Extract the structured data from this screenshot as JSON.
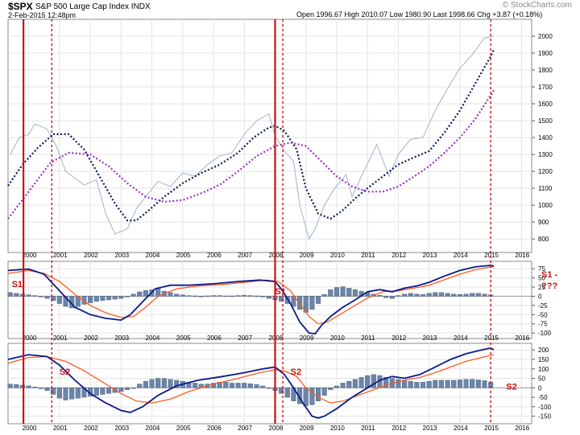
{
  "header": {
    "symbol": "$SPX",
    "name": "S&P 500 Large Cap Index",
    "exchange": "INDX",
    "timestamp": "2-Feb-2015 12:48pm",
    "quote": "Open 1996.67 High 2010.07 Low 1980.90 Last 1998.66 Chg +3.87 (+0.18%)",
    "source": "© StockCharts.com"
  },
  "colors": {
    "price": "#9fb4c8",
    "ma_fast": "#0a1a5a",
    "ma_slow": "#9b30c8",
    "macd": "#0a1a8a",
    "signal": "#ff5a1e",
    "hist": "#6b85a8",
    "marker": "#cc1111"
  },
  "chart_data": [
    {
      "type": "line",
      "panel": "price",
      "x_ticks": [
        "2000",
        "2001",
        "2002",
        "2003",
        "2004",
        "2005",
        "2006",
        "2007",
        "2008",
        "2009",
        "2010",
        "2011",
        "2012",
        "2013",
        "2014",
        "2015",
        "2016"
      ],
      "y_ticks": [
        2000,
        1900,
        1800,
        1700,
        1600,
        1500,
        1400,
        1300,
        1200,
        1100,
        1000,
        900,
        800
      ],
      "ylim": [
        720,
        2100
      ],
      "xlim": [
        1999.33,
        2016.33
      ],
      "series": [
        {
          "key": "price",
          "x": [
            1999.4,
            1999.7,
            2000.0,
            2000.2,
            2000.6,
            2000.9,
            2001.2,
            2001.5,
            2001.8,
            2002.2,
            2002.5,
            2002.8,
            2003.2,
            2003.5,
            2003.8,
            2004.2,
            2004.6,
            2005.0,
            2005.4,
            2005.8,
            2006.2,
            2006.6,
            2007.0,
            2007.4,
            2007.8,
            2008.0,
            2008.3,
            2008.6,
            2008.8,
            2009.1,
            2009.3,
            2009.6,
            2009.9,
            2010.3,
            2010.5,
            2010.8,
            2011.3,
            2011.7,
            2012.0,
            2012.4,
            2012.8,
            2013.2,
            2013.6,
            2014.0,
            2014.4,
            2014.8,
            2015.1
          ],
          "y": [
            1300,
            1400,
            1420,
            1480,
            1450,
            1350,
            1200,
            1160,
            1120,
            1150,
            950,
            830,
            860,
            980,
            1050,
            1140,
            1110,
            1190,
            1170,
            1240,
            1290,
            1310,
            1420,
            1500,
            1540,
            1410,
            1320,
            1260,
            1000,
            800,
            860,
            1000,
            1090,
            1180,
            1050,
            1170,
            1360,
            1170,
            1300,
            1390,
            1400,
            1560,
            1690,
            1810,
            1890,
            1990,
            2000
          ]
        },
        {
          "key": "ma_fast",
          "x": [
            1999.33,
            1999.8,
            2000.3,
            2000.8,
            2001.3,
            2001.8,
            2002.3,
            2002.8,
            2003.2,
            2003.5,
            2003.9,
            2004.4,
            2005.0,
            2005.6,
            2006.2,
            2006.8,
            2007.3,
            2007.8,
            2008.0,
            2008.3,
            2008.7,
            2009.0,
            2009.4,
            2009.8,
            2010.2,
            2010.6,
            2011.0,
            2011.5,
            2012.0,
            2012.6,
            2013.0,
            2013.5,
            2014.0,
            2014.5,
            2015.0,
            2015.1
          ],
          "y": [
            1115,
            1240,
            1340,
            1420,
            1420,
            1330,
            1170,
            1010,
            910,
            910,
            970,
            1050,
            1130,
            1190,
            1240,
            1310,
            1400,
            1460,
            1470,
            1440,
            1330,
            1100,
            950,
            920,
            970,
            1040,
            1100,
            1170,
            1240,
            1290,
            1320,
            1430,
            1560,
            1720,
            1880,
            1920
          ]
        },
        {
          "key": "ma_slow",
          "x": [
            1999.33,
            2000.0,
            2000.7,
            2001.3,
            2002.0,
            2002.6,
            2003.2,
            2003.8,
            2004.4,
            2005.0,
            2005.6,
            2006.2,
            2006.8,
            2007.4,
            2008.0,
            2008.5,
            2009.0,
            2009.5,
            2010.0,
            2010.5,
            2011.0,
            2011.5,
            2012.0,
            2012.6,
            2013.0,
            2013.5,
            2014.0,
            2014.5,
            2015.0,
            2015.1
          ],
          "y": [
            920,
            1080,
            1250,
            1310,
            1300,
            1230,
            1130,
            1050,
            1020,
            1030,
            1070,
            1120,
            1200,
            1290,
            1350,
            1370,
            1350,
            1260,
            1170,
            1110,
            1080,
            1080,
            1110,
            1180,
            1230,
            1310,
            1400,
            1510,
            1650,
            1680
          ]
        }
      ]
    },
    {
      "type": "line",
      "panel": "macd_s1",
      "annotation": "S1 - ???",
      "y_ticks": [
        75,
        50,
        25,
        0,
        -25,
        -50,
        -75,
        -100
      ],
      "ylim": [
        -115,
        95
      ],
      "xlim": [
        1999.33,
        2016.33
      ],
      "series": [
        {
          "key": "macd",
          "x": [
            1999.33,
            2000.0,
            2000.5,
            2001.0,
            2001.5,
            2002.0,
            2002.5,
            2003.0,
            2003.3,
            2003.7,
            2004.1,
            2004.6,
            2005.2,
            2006.0,
            2006.8,
            2007.5,
            2008.0,
            2008.2,
            2008.5,
            2008.8,
            2009.1,
            2009.3,
            2009.5,
            2009.8,
            2010.2,
            2010.6,
            2011.0,
            2011.4,
            2011.8,
            2012.2,
            2012.6,
            2013.0,
            2013.5,
            2014.0,
            2014.5,
            2015.0,
            2015.1
          ],
          "y": [
            70,
            74,
            60,
            15,
            -30,
            -50,
            -60,
            -65,
            -50,
            -15,
            20,
            30,
            30,
            34,
            40,
            44,
            40,
            20,
            -20,
            -70,
            -100,
            -102,
            -80,
            -55,
            -30,
            -10,
            12,
            18,
            12,
            22,
            28,
            38,
            55,
            70,
            80,
            84,
            82
          ]
        },
        {
          "key": "signal",
          "x": [
            1999.33,
            2000.0,
            2000.5,
            2001.0,
            2001.5,
            2002.0,
            2002.5,
            2003.0,
            2003.4,
            2003.8,
            2004.2,
            2004.8,
            2005.5,
            2006.3,
            2007.0,
            2007.7,
            2008.1,
            2008.5,
            2008.8,
            2009.1,
            2009.4,
            2009.7,
            2010.0,
            2010.5,
            2011.0,
            2011.5,
            2012.0,
            2012.5,
            2013.0,
            2013.5,
            2014.0,
            2014.5,
            2015.0,
            2015.1
          ],
          "y": [
            62,
            70,
            62,
            40,
            5,
            -25,
            -45,
            -58,
            -55,
            -30,
            0,
            20,
            28,
            32,
            38,
            44,
            40,
            15,
            -20,
            -55,
            -75,
            -70,
            -55,
            -30,
            -5,
            12,
            15,
            22,
            30,
            45,
            60,
            72,
            80,
            80
          ]
        },
        {
          "key": "hist",
          "x": [
            1999.4,
            1999.6,
            1999.8,
            2000.0,
            2000.2,
            2000.4,
            2000.6,
            2000.8,
            2001.0,
            2001.2,
            2001.4,
            2001.6,
            2001.8,
            2002.0,
            2002.2,
            2002.4,
            2002.6,
            2002.8,
            2003.0,
            2003.2,
            2003.4,
            2003.6,
            2003.8,
            2004.0,
            2004.2,
            2004.4,
            2004.6,
            2004.8,
            2005.0,
            2005.2,
            2005.4,
            2005.6,
            2005.8,
            2006.0,
            2006.2,
            2006.4,
            2006.6,
            2006.8,
            2007.0,
            2007.2,
            2007.4,
            2007.6,
            2007.8,
            2008.0,
            2008.2,
            2008.4,
            2008.6,
            2008.8,
            2009.0,
            2009.2,
            2009.4,
            2009.6,
            2009.8,
            2010.0,
            2010.2,
            2010.4,
            2010.6,
            2010.8,
            2011.0,
            2011.2,
            2011.4,
            2011.6,
            2011.8,
            2012.0,
            2012.2,
            2012.4,
            2012.6,
            2012.8,
            2013.0,
            2013.2,
            2013.4,
            2013.6,
            2013.8,
            2014.0,
            2014.2,
            2014.4,
            2014.6,
            2014.8,
            2015.0
          ],
          "y": [
            10,
            8,
            6,
            4,
            2,
            -2,
            -6,
            -12,
            -20,
            -28,
            -32,
            -28,
            -22,
            -18,
            -14,
            -12,
            -10,
            -8,
            -6,
            0,
            6,
            12,
            16,
            18,
            20,
            14,
            10,
            6,
            4,
            2,
            1,
            0,
            1,
            2,
            2,
            1,
            1,
            2,
            3,
            2,
            1,
            -2,
            -6,
            -10,
            -14,
            -20,
            -28,
            -36,
            -44,
            -36,
            -20,
            5,
            18,
            24,
            26,
            22,
            18,
            14,
            10,
            6,
            3,
            -4,
            -6,
            2,
            6,
            8,
            6,
            5,
            8,
            10,
            10,
            8,
            6,
            5,
            6,
            8,
            8,
            6,
            4
          ]
        }
      ]
    },
    {
      "type": "line",
      "panel": "macd_s2",
      "annotation": "S2",
      "y_ticks": [
        200,
        150,
        100,
        50,
        0,
        -50,
        -100,
        -150
      ],
      "ylim": [
        -190,
        235
      ],
      "xlim": [
        1999.33,
        2016.33
      ],
      "series": [
        {
          "key": "macd",
          "x": [
            1999.33,
            2000.0,
            2000.6,
            2001.0,
            2001.5,
            2002.0,
            2002.5,
            2003.0,
            2003.3,
            2003.7,
            2004.2,
            2004.8,
            2005.5,
            2006.3,
            2007.0,
            2007.6,
            2008.0,
            2008.3,
            2008.6,
            2008.9,
            2009.2,
            2009.4,
            2009.6,
            2010.0,
            2010.5,
            2011.0,
            2011.4,
            2011.8,
            2012.2,
            2012.7,
            2013.2,
            2013.7,
            2014.2,
            2014.7,
            2015.0,
            2015.1
          ],
          "y": [
            150,
            175,
            165,
            120,
            40,
            -30,
            -80,
            -120,
            -130,
            -100,
            -40,
            10,
            40,
            60,
            80,
            100,
            110,
            70,
            0,
            -80,
            -150,
            -160,
            -150,
            -110,
            -50,
            0,
            40,
            60,
            50,
            70,
            110,
            150,
            180,
            200,
            210,
            200
          ]
        },
        {
          "key": "signal",
          "x": [
            1999.33,
            2000.0,
            2000.6,
            2001.2,
            2001.8,
            2002.4,
            2003.0,
            2003.5,
            2004.0,
            2004.6,
            2005.2,
            2006.0,
            2006.8,
            2007.5,
            2008.0,
            2008.3,
            2008.7,
            2009.0,
            2009.4,
            2009.8,
            2010.2,
            2010.7,
            2011.2,
            2011.7,
            2012.2,
            2012.7,
            2013.2,
            2013.7,
            2014.2,
            2014.7,
            2015.1
          ],
          "y": [
            130,
            160,
            165,
            140,
            90,
            30,
            -30,
            -70,
            -80,
            -60,
            -20,
            20,
            50,
            80,
            95,
            90,
            60,
            0,
            -50,
            -80,
            -70,
            -40,
            -10,
            20,
            40,
            55,
            80,
            110,
            140,
            160,
            175
          ]
        },
        {
          "key": "hist",
          "x": [
            1999.4,
            1999.6,
            1999.8,
            2000.0,
            2000.2,
            2000.4,
            2000.6,
            2000.8,
            2001.0,
            2001.2,
            2001.4,
            2001.6,
            2001.8,
            2002.0,
            2002.2,
            2002.4,
            2002.6,
            2002.8,
            2003.0,
            2003.2,
            2003.4,
            2003.6,
            2003.8,
            2004.0,
            2004.2,
            2004.4,
            2004.6,
            2004.8,
            2005.0,
            2005.2,
            2005.4,
            2005.6,
            2005.8,
            2006.0,
            2006.2,
            2006.4,
            2006.6,
            2006.8,
            2007.0,
            2007.2,
            2007.4,
            2007.6,
            2007.8,
            2008.0,
            2008.2,
            2008.4,
            2008.6,
            2008.8,
            2009.0,
            2009.2,
            2009.4,
            2009.6,
            2009.8,
            2010.0,
            2010.2,
            2010.4,
            2010.6,
            2010.8,
            2011.0,
            2011.2,
            2011.4,
            2011.6,
            2011.8,
            2012.0,
            2012.2,
            2012.4,
            2012.6,
            2012.8,
            2013.0,
            2013.2,
            2013.4,
            2013.6,
            2013.8,
            2014.0,
            2014.2,
            2014.4,
            2014.6,
            2014.8,
            2015.0
          ],
          "y": [
            20,
            18,
            14,
            10,
            5,
            -5,
            -15,
            -35,
            -55,
            -65,
            -60,
            -55,
            -50,
            -45,
            -40,
            -35,
            -30,
            -25,
            -20,
            -10,
            0,
            20,
            35,
            45,
            50,
            50,
            45,
            40,
            35,
            30,
            25,
            20,
            20,
            25,
            30,
            30,
            25,
            25,
            25,
            22,
            18,
            10,
            0,
            -15,
            -30,
            -50,
            -70,
            -85,
            -95,
            -90,
            -70,
            -40,
            -10,
            10,
            25,
            35,
            45,
            55,
            65,
            70,
            65,
            55,
            50,
            45,
            40,
            35,
            30,
            30,
            35,
            40,
            40,
            40,
            40,
            42,
            45,
            45,
            42,
            38,
            30
          ]
        }
      ]
    }
  ],
  "markers": {
    "solid_x": [
      1999.83,
      2008.0
    ],
    "dashed_x": [
      2000.75,
      2008.25,
      2015.0
    ]
  },
  "panels": {
    "macd_s1": {
      "labels": [
        {
          "text": "S1",
          "x": 1999.45,
          "y": 25
        },
        {
          "text": "S1",
          "x": 2008.0,
          "y": 5
        }
      ]
    },
    "macd_s2": {
      "labels": [
        {
          "text": "S2",
          "x": 2001.0,
          "y": 70
        },
        {
          "text": "S2",
          "x": 2008.5,
          "y": 70
        },
        {
          "text": "S2",
          "x": 2015.5,
          "y": -10
        }
      ]
    }
  }
}
